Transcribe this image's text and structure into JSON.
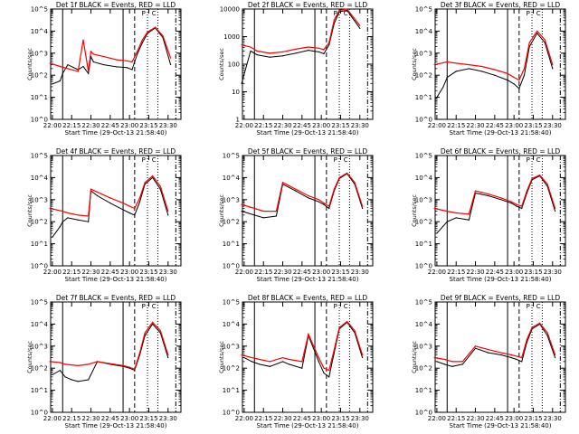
{
  "figure": {
    "background": "#ffffff",
    "axis_color": "#000000",
    "events_color": "#000000",
    "lld_color": "#ff0000",
    "time_axis": {
      "ticks": [
        "22:00",
        "22:15",
        "22:30",
        "22:45",
        "23:00",
        "23:15",
        "23:30"
      ],
      "xlabel": "Start Time (29-Oct-13 21:58:40)",
      "range": [
        "21:58:40",
        "23:40:00"
      ]
    },
    "ylabel": "Counts/sec",
    "interval_markers": [
      "P",
      "C"
    ],
    "vertical_lines": [
      {
        "time": "22:08:00",
        "style": "solid"
      },
      {
        "time": "22:55:00",
        "style": "solid"
      },
      {
        "time": "23:04:00",
        "style": "dashed"
      },
      {
        "time": "23:14:00",
        "style": "dotted"
      },
      {
        "time": "23:22:00",
        "style": "dotted"
      },
      {
        "time": "23:36:00",
        "style": "dash-dot"
      }
    ]
  },
  "chart_data": [
    {
      "type": "line",
      "title": "Det 1f BLACK = Events, RED = LLD",
      "yscale": "log",
      "ylim": [
        1,
        100000
      ],
      "ytick_labels": [
        "10^0",
        "10^1",
        "10^2",
        "10^3",
        "10^4",
        "10^5"
      ],
      "series": [
        {
          "name": "Events",
          "color": "#000000",
          "x": [
            "22:00",
            "22:06",
            "22:08",
            "22:12",
            "22:20",
            "22:24",
            "22:28",
            "22:30",
            "22:32",
            "22:40",
            "22:50",
            "22:58",
            "23:02",
            "23:06",
            "23:10",
            "23:14",
            "23:20",
            "23:26",
            "23:32"
          ],
          "y": [
            40,
            55,
            120,
            300,
            180,
            250,
            120,
            700,
            400,
            300,
            240,
            220,
            180,
            900,
            3000,
            8000,
            14000,
            5000,
            300
          ]
        },
        {
          "name": "LLD",
          "color": "#ff0000",
          "x": [
            "21:58",
            "22:06",
            "22:12",
            "22:20",
            "22:24",
            "22:28",
            "22:30",
            "22:32",
            "22:40",
            "22:50",
            "22:58",
            "23:02",
            "23:06",
            "23:10",
            "23:14",
            "23:20",
            "23:26",
            "23:32"
          ],
          "y": [
            350,
            250,
            200,
            150,
            4000,
            150,
            1200,
            900,
            700,
            500,
            450,
            400,
            1200,
            4000,
            9000,
            15000,
            6000,
            600
          ]
        }
      ]
    },
    {
      "type": "line",
      "title": "Det 2f BLACK = Events, RED = LLD",
      "yscale": "log",
      "ylim": [
        1,
        10000
      ],
      "ytick_labels": [
        "1",
        "10",
        "100",
        "1000",
        "10000"
      ],
      "series": [
        {
          "name": "Events",
          "color": "#000000",
          "x": [
            "21:58",
            "22:05",
            "22:10",
            "22:20",
            "22:30",
            "22:40",
            "22:50",
            "22:58",
            "23:02",
            "23:06",
            "23:10",
            "23:14",
            "23:20",
            "23:30"
          ],
          "y": [
            20,
            300,
            220,
            180,
            200,
            250,
            320,
            280,
            240,
            500,
            3000,
            8000,
            9000,
            2000
          ]
        },
        {
          "name": "LLD",
          "color": "#ff0000",
          "x": [
            "21:58",
            "22:05",
            "22:10",
            "22:20",
            "22:30",
            "22:40",
            "22:50",
            "22:58",
            "23:02",
            "23:06",
            "23:10",
            "23:14",
            "23:20",
            "23:30"
          ],
          "y": [
            500,
            420,
            300,
            250,
            280,
            350,
            420,
            380,
            340,
            600,
            4000,
            9000,
            10000,
            2500
          ]
        }
      ]
    },
    {
      "type": "line",
      "title": "Det 3f BLACK = Events, RED = LLD",
      "yscale": "log",
      "ylim": [
        1,
        100000
      ],
      "ytick_labels": [
        "10^0",
        "10^1",
        "10^2",
        "10^3",
        "10^4",
        "10^5"
      ],
      "series": [
        {
          "name": "Events",
          "color": "#000000",
          "x": [
            "22:00",
            "22:05",
            "22:08",
            "22:15",
            "22:25",
            "22:35",
            "22:45",
            "22:55",
            "23:00",
            "23:04",
            "23:08",
            "23:12",
            "23:18",
            "23:24",
            "23:30"
          ],
          "y": [
            10,
            30,
            80,
            150,
            200,
            150,
            100,
            60,
            40,
            25,
            100,
            2000,
            8000,
            3000,
            200
          ]
        },
        {
          "name": "LLD",
          "color": "#ff0000",
          "x": [
            "21:58",
            "22:08",
            "22:15",
            "22:25",
            "22:35",
            "22:45",
            "22:55",
            "23:00",
            "23:04",
            "23:08",
            "23:12",
            "23:18",
            "23:24",
            "23:30"
          ],
          "y": [
            300,
            400,
            350,
            300,
            250,
            180,
            120,
            80,
            60,
            200,
            3000,
            10000,
            4000,
            300
          ]
        }
      ]
    },
    {
      "type": "line",
      "title": "Det 4f BLACK = Events, RED = LLD",
      "yscale": "log",
      "ylim": [
        1,
        100000
      ],
      "ytick_labels": [
        "10^0",
        "10^1",
        "10^2",
        "10^3",
        "10^4",
        "10^5"
      ],
      "series": [
        {
          "name": "Events",
          "color": "#000000",
          "x": [
            "22:00",
            "22:06",
            "22:08",
            "22:12",
            "22:20",
            "22:28",
            "22:30",
            "22:35",
            "22:45",
            "22:55",
            "23:00",
            "23:04",
            "23:08",
            "23:12",
            "23:18",
            "23:24",
            "23:30"
          ],
          "y": [
            20,
            60,
            100,
            150,
            120,
            100,
            2500,
            1500,
            700,
            350,
            250,
            200,
            800,
            5000,
            10000,
            3000,
            200
          ]
        },
        {
          "name": "LLD",
          "color": "#ff0000",
          "x": [
            "21:58",
            "22:08",
            "22:12",
            "22:20",
            "22:28",
            "22:30",
            "22:35",
            "22:45",
            "22:55",
            "23:00",
            "23:04",
            "23:08",
            "23:12",
            "23:18",
            "23:24",
            "23:30"
          ],
          "y": [
            400,
            300,
            250,
            200,
            180,
            3000,
            2200,
            1200,
            700,
            500,
            400,
            1200,
            6000,
            12000,
            4000,
            300
          ]
        }
      ]
    },
    {
      "type": "line",
      "title": "Det 5f BLACK = Events, RED = LLD",
      "yscale": "log",
      "ylim": [
        1,
        100000
      ],
      "ytick_labels": [
        "10^0",
        "10^1",
        "10^2",
        "10^3",
        "10^4",
        "10^5"
      ],
      "series": [
        {
          "name": "Events",
          "color": "#000000",
          "x": [
            "21:58",
            "22:08",
            "22:15",
            "22:25",
            "22:30",
            "22:40",
            "22:50",
            "22:58",
            "23:02",
            "23:06",
            "23:10",
            "23:14",
            "23:20",
            "23:26",
            "23:32"
          ],
          "y": [
            300,
            200,
            150,
            180,
            5000,
            2500,
            1200,
            800,
            600,
            400,
            2500,
            9000,
            15000,
            5000,
            400
          ]
        },
        {
          "name": "LLD",
          "color": "#ff0000",
          "x": [
            "21:58",
            "22:08",
            "22:15",
            "22:25",
            "22:30",
            "22:40",
            "22:50",
            "22:58",
            "23:02",
            "23:06",
            "23:10",
            "23:14",
            "23:20",
            "23:26",
            "23:32"
          ],
          "y": [
            600,
            400,
            300,
            300,
            6000,
            3000,
            1500,
            1000,
            700,
            500,
            3000,
            10000,
            16000,
            6000,
            500
          ]
        }
      ]
    },
    {
      "type": "line",
      "title": "Det 6f BLACK = Events, RED = LLD",
      "yscale": "log",
      "ylim": [
        1,
        100000
      ],
      "ytick_labels": [
        "10^0",
        "10^1",
        "10^2",
        "10^3",
        "10^4",
        "10^5"
      ],
      "series": [
        {
          "name": "Events",
          "color": "#000000",
          "x": [
            "22:00",
            "22:08",
            "22:15",
            "22:25",
            "22:30",
            "22:40",
            "22:50",
            "22:58",
            "23:02",
            "23:06",
            "23:10",
            "23:14",
            "23:20",
            "23:26",
            "23:32"
          ],
          "y": [
            30,
            100,
            150,
            120,
            2000,
            1500,
            1000,
            700,
            500,
            400,
            2000,
            8000,
            12000,
            4000,
            300
          ]
        },
        {
          "name": "LLD",
          "color": "#ff0000",
          "x": [
            "21:58",
            "22:08",
            "22:15",
            "22:25",
            "22:30",
            "22:40",
            "22:50",
            "22:58",
            "23:02",
            "23:06",
            "23:10",
            "23:14",
            "23:20",
            "23:26",
            "23:32"
          ],
          "y": [
            400,
            300,
            250,
            220,
            2500,
            1800,
            1200,
            800,
            600,
            500,
            2500,
            9000,
            13000,
            5000,
            400
          ]
        }
      ]
    },
    {
      "type": "line",
      "title": "Det 7f BLACK = Events, RED = LLD",
      "yscale": "log",
      "ylim": [
        1,
        100000
      ],
      "ytick_labels": [
        "10^0",
        "10^1",
        "10^2",
        "10^3",
        "10^4",
        "10^5"
      ],
      "series": [
        {
          "name": "Events",
          "color": "#000000",
          "x": [
            "22:00",
            "22:06",
            "22:10",
            "22:15",
            "22:20",
            "22:28",
            "22:35",
            "22:45",
            "22:55",
            "23:00",
            "23:04",
            "23:08",
            "23:12",
            "23:18",
            "23:24",
            "23:30"
          ],
          "y": [
            50,
            80,
            40,
            30,
            25,
            30,
            200,
            150,
            120,
            100,
            80,
            400,
            3000,
            10000,
            4000,
            300
          ]
        },
        {
          "name": "LLD",
          "color": "#ff0000",
          "x": [
            "21:58",
            "22:06",
            "22:10",
            "22:15",
            "22:20",
            "22:28",
            "22:35",
            "22:45",
            "22:55",
            "23:00",
            "23:04",
            "23:08",
            "23:12",
            "23:18",
            "23:24",
            "23:30"
          ],
          "y": [
            200,
            180,
            150,
            140,
            130,
            150,
            200,
            160,
            130,
            110,
            90,
            500,
            4000,
            12000,
            5000,
            400
          ]
        }
      ]
    },
    {
      "type": "line",
      "title": "Det 8f BLACK = Events, RED = LLD",
      "yscale": "log",
      "ylim": [
        1,
        100000
      ],
      "ytick_labels": [
        "10^0",
        "10^1",
        "10^2",
        "10^3",
        "10^4",
        "10^5"
      ],
      "series": [
        {
          "name": "Events",
          "color": "#000000",
          "x": [
            "22:00",
            "22:06",
            "22:12",
            "22:20",
            "22:30",
            "22:35",
            "22:45",
            "22:50",
            "22:58",
            "23:02",
            "23:06",
            "23:10",
            "23:14",
            "23:20",
            "23:26",
            "23:32"
          ],
          "y": [
            300,
            200,
            150,
            120,
            200,
            150,
            100,
            3000,
            200,
            60,
            40,
            500,
            6000,
            12000,
            4000,
            300
          ]
        },
        {
          "name": "LLD",
          "color": "#ff0000",
          "x": [
            "21:58",
            "22:06",
            "22:12",
            "22:20",
            "22:30",
            "22:35",
            "22:45",
            "22:50",
            "22:58",
            "23:02",
            "23:06",
            "23:10",
            "23:14",
            "23:20",
            "23:26",
            "23:32"
          ],
          "y": [
            400,
            300,
            250,
            200,
            300,
            250,
            200,
            3500,
            300,
            100,
            80,
            700,
            7000,
            13000,
            5000,
            400
          ]
        }
      ]
    },
    {
      "type": "line",
      "title": "Det 9f BLACK = Events, RED = LLD",
      "yscale": "log",
      "ylim": [
        1,
        100000
      ],
      "ytick_labels": [
        "10^0",
        "10^1",
        "10^2",
        "10^3",
        "10^4",
        "10^5"
      ],
      "series": [
        {
          "name": "Events",
          "color": "#000000",
          "x": [
            "22:00",
            "22:06",
            "22:12",
            "22:20",
            "22:30",
            "22:40",
            "22:50",
            "22:58",
            "23:02",
            "23:06",
            "23:10",
            "23:14",
            "23:20",
            "23:26",
            "23:32"
          ],
          "y": [
            200,
            150,
            120,
            150,
            800,
            500,
            400,
            300,
            250,
            200,
            1500,
            6000,
            10000,
            3000,
            300
          ]
        },
        {
          "name": "LLD",
          "color": "#ff0000",
          "x": [
            "21:58",
            "22:06",
            "22:12",
            "22:20",
            "22:30",
            "22:40",
            "22:50",
            "22:58",
            "23:02",
            "23:06",
            "23:10",
            "23:14",
            "23:20",
            "23:26",
            "23:32"
          ],
          "y": [
            300,
            250,
            200,
            200,
            1000,
            700,
            500,
            400,
            350,
            300,
            2000,
            7000,
            11000,
            4000,
            400
          ]
        }
      ]
    }
  ]
}
